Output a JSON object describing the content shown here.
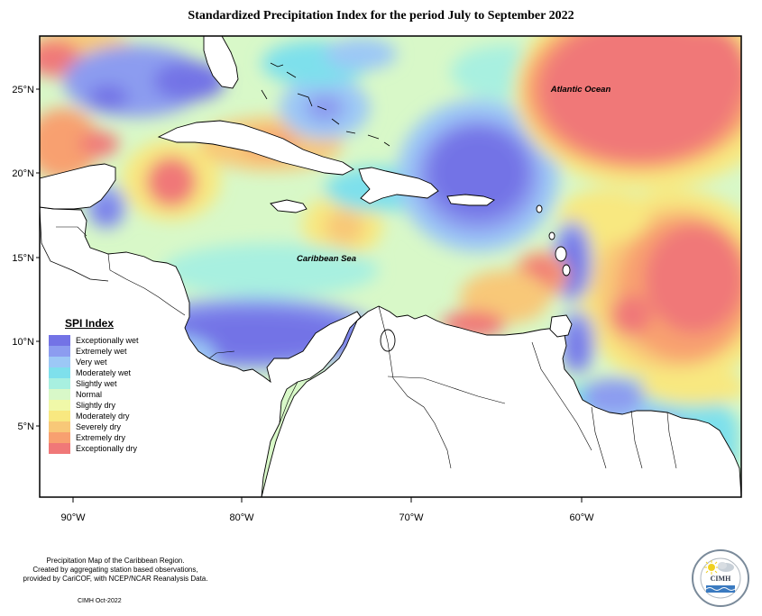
{
  "title": "Standardized Precipitation Index for the period July to September 2022",
  "map": {
    "ocean_labels": {
      "atlantic": "Atlantic Ocean",
      "caribbean": "Caribbean Sea"
    },
    "lat_ticks": [
      "25°N",
      "20°N",
      "15°N",
      "10°N",
      "5°N"
    ],
    "lon_ticks": [
      "90°W",
      "80°W",
      "70°W",
      "60°W"
    ]
  },
  "legend": {
    "title": "SPI Index",
    "items": [
      {
        "label": "Exceptionally wet",
        "color": "#7373e6"
      },
      {
        "label": "Extremely wet",
        "color": "#8c9cf0"
      },
      {
        "label": "Very wet",
        "color": "#9cc8f6"
      },
      {
        "label": "Moderately wet",
        "color": "#7ee0ec"
      },
      {
        "label": "Slightly wet",
        "color": "#a8f0e0"
      },
      {
        "label": "Normal",
        "color": "#d8f8c8"
      },
      {
        "label": "Slightly dry",
        "color": "#f0f8a8"
      },
      {
        "label": "Moderately dry",
        "color": "#f8e880"
      },
      {
        "label": "Severely dry",
        "color": "#f8c878"
      },
      {
        "label": "Extremely dry",
        "color": "#f8a070"
      },
      {
        "label": "Exceptionally dry",
        "color": "#f07878"
      }
    ]
  },
  "credits": {
    "line1": "Precipitation Map of the Caribbean Region.",
    "line2": "Created by aggregating station based observations,",
    "line3": "provided by CariCOF, with NCEP/NCAR Reanalysis Data.",
    "date": "CIMH Oct-2022"
  },
  "logo": {
    "text": "CIMH"
  }
}
